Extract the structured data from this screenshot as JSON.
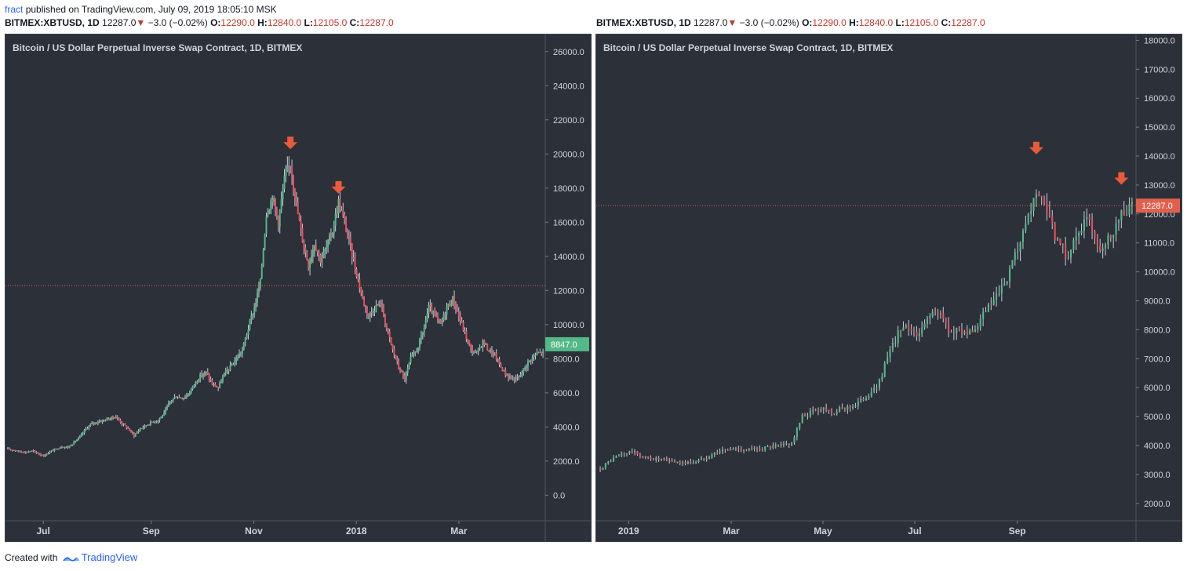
{
  "header": {
    "author": "fract",
    "published_text": "published on TradingView.com, July 09, 2019 18:05:10 MSK",
    "symbol": "BITMEX:XBTUSD,",
    "interval": "1D",
    "last": "12287.0",
    "change": "−3.0 (−0.02%)",
    "o_label": "O:",
    "o_value": "12290.0",
    "h_label": "H:",
    "h_value": "12840.0",
    "l_label": "L:",
    "l_value": "12105.0",
    "c_label": "C:",
    "c_value": "12287.0",
    "symbol_right": "BITMEX:XBTUSD,"
  },
  "footer": {
    "created_with": "Created with",
    "brand": "TradingView"
  },
  "colors": {
    "background": "#2b3039",
    "up": "#53b987",
    "down": "#eb4d5c",
    "wick": "#c9cdd6",
    "marker": "#e95a3a",
    "price_line": "#e0604e",
    "label_left": "#53b987",
    "label_right": "#e0604e"
  },
  "chart_data": [
    {
      "type": "candlestick",
      "title": "Bitcoin / US Dollar Perpetual Inverse Swap Contract, 1D, BITMEX",
      "price_label": "8847.0",
      "current_price": 12287,
      "ylim": [
        -1500,
        27000
      ],
      "y_ticks": [
        0,
        2000,
        4000,
        6000,
        8000,
        10000,
        12000,
        14000,
        16000,
        18000,
        20000,
        22000,
        24000,
        26000
      ],
      "y_tick_labels": [
        "0.0",
        "2000.0",
        "4000.0",
        "6000.0",
        "8000.0",
        "10000.0",
        "12000.0",
        "14000.0",
        "16000.0",
        "18000.0",
        "20000.0",
        "22000.0",
        "24000.0",
        "26000.0"
      ],
      "x_labels": [
        "Jul",
        "Sep",
        "Nov",
        "2018",
        "Mar"
      ],
      "x_positions": [
        0.07,
        0.27,
        0.46,
        0.65,
        0.84
      ],
      "close_series": [
        2700,
        2650,
        2560,
        2520,
        2600,
        2450,
        2300,
        2550,
        2700,
        2850,
        2800,
        3100,
        3400,
        3900,
        4200,
        4300,
        4400,
        4500,
        4600,
        4200,
        3900,
        3500,
        3900,
        4100,
        4300,
        4400,
        4800,
        5500,
        5800,
        5700,
        5900,
        6500,
        7000,
        7200,
        6500,
        6300,
        7100,
        7500,
        8000,
        8500,
        9800,
        11000,
        12500,
        16500,
        17500,
        16000,
        18500,
        19500,
        17000,
        15000,
        13500,
        14800,
        13800,
        14500,
        15500,
        17200,
        16000,
        14500,
        13000,
        11500,
        10500,
        11000,
        11300,
        9800,
        8500,
        7500,
        6800,
        8000,
        8500,
        9500,
        11000,
        10500,
        10000,
        11000,
        11500,
        10500,
        9500,
        8500,
        8300,
        9000,
        8500,
        8200,
        7500,
        7000,
        6800,
        6900,
        7500,
        8000,
        8300,
        8400
      ],
      "markers": [
        {
          "x_index": 47,
          "price": 20000
        },
        {
          "x_index": 55,
          "price": 17400
        }
      ]
    },
    {
      "type": "candlestick",
      "title": "Bitcoin / US Dollar Perpetual Inverse Swap Contract, 1D, BITMEX",
      "price_label": "12287.0",
      "current_price": 12287,
      "ylim": [
        1400,
        18200
      ],
      "y_ticks": [
        2000,
        3000,
        4000,
        5000,
        6000,
        7000,
        8000,
        9000,
        10000,
        11000,
        12000,
        13000,
        14000,
        15000,
        16000,
        17000,
        18000
      ],
      "y_tick_labels": [
        "2000.0",
        "3000.0",
        "4000.0",
        "5000.0",
        "6000.0",
        "7000.0",
        "8000.0",
        "9000.0",
        "10000.0",
        "11000.0",
        "12000.0",
        "13000.0",
        "14000.0",
        "15000.0",
        "16000.0",
        "17000.0",
        "18000.0"
      ],
      "x_labels": [
        "2019",
        "Mar",
        "May",
        "Jul",
        "Sep"
      ],
      "x_positions": [
        0.06,
        0.25,
        0.42,
        0.59,
        0.78
      ],
      "close_series": [
        3200,
        3500,
        3700,
        3800,
        3600,
        3550,
        3500,
        3450,
        3400,
        3450,
        3600,
        3800,
        3850,
        3900,
        3850,
        3900,
        3950,
        4000,
        4100,
        5000,
        5200,
        5300,
        5150,
        5300,
        5400,
        5700,
        6000,
        7000,
        7900,
        8100,
        7800,
        8600,
        8500,
        7900,
        8000,
        7800,
        8500,
        9000,
        9500,
        10500,
        11500,
        12800,
        12000,
        11000,
        10500,
        11500,
        11800,
        10800,
        11300,
        12000,
        12287
      ],
      "markers": [
        {
          "x_index": 41,
          "price": 13900
        },
        {
          "x_index": 49,
          "price": 12850
        }
      ]
    }
  ]
}
